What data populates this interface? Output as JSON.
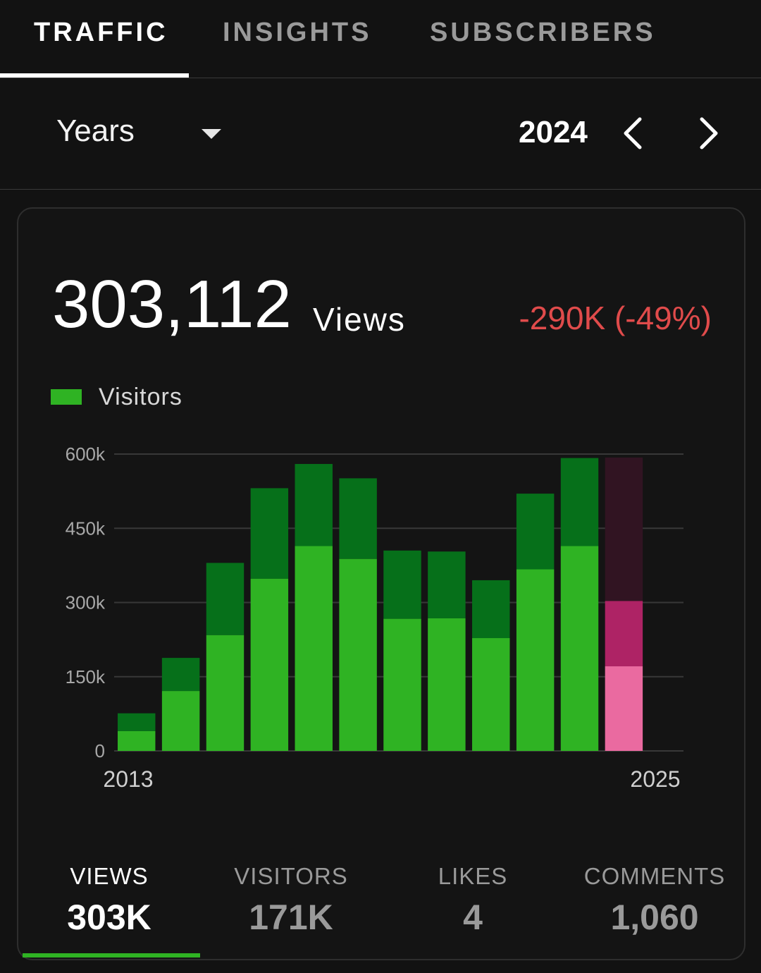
{
  "tabs": [
    {
      "label": "TRAFFIC",
      "active": true
    },
    {
      "label": "INSIGHTS",
      "active": false
    },
    {
      "label": "SUBSCRIBERS",
      "active": false
    }
  ],
  "toolbar": {
    "period": "Years",
    "dropdown_icon": "caret-down-icon",
    "year": "2024",
    "prev_icon": "chevron-left-icon",
    "next_icon": "chevron-right-icon"
  },
  "summary": {
    "total": "303,112",
    "unit": "Views",
    "delta": "-290K (-49%)",
    "delta_color": "#e04b4b"
  },
  "chart_data": {
    "type": "bar",
    "stacked": true,
    "legend": [
      {
        "name": "Visitors",
        "color": "#2fb323"
      }
    ],
    "x_tick_labels": [
      "2013",
      "2025"
    ],
    "y_ticks": [
      "600k",
      "450k",
      "300k",
      "150k",
      "0"
    ],
    "ylim": [
      0,
      600000
    ],
    "grid": true,
    "colors": {
      "visitors": "#2fb323",
      "views": "#06701a",
      "forecast_visitors": "#ea6aa0",
      "forecast_views": "#ae2365",
      "forecast_remaining": "#311422"
    },
    "bars": [
      {
        "visitors": 40000,
        "views": 76000
      },
      {
        "visitors": 121000,
        "views": 188000
      },
      {
        "visitors": 234000,
        "views": 380000
      },
      {
        "visitors": 348000,
        "views": 531000
      },
      {
        "visitors": 414000,
        "views": 580000
      },
      {
        "visitors": 388000,
        "views": 551000
      },
      {
        "visitors": 267000,
        "views": 405000
      },
      {
        "visitors": 268000,
        "views": 403000
      },
      {
        "visitors": 228000,
        "views": 345000
      },
      {
        "visitors": 367000,
        "views": 520000
      },
      {
        "visitors": 414000,
        "views": 592000
      },
      {
        "visitors": 171000,
        "views": 303000,
        "projected": 593000,
        "forecast": true
      },
      {
        "visitors": 0,
        "views": 0
      }
    ]
  },
  "stats": [
    {
      "label": "VIEWS",
      "value": "303K",
      "active": true
    },
    {
      "label": "VISITORS",
      "value": "171K",
      "active": false
    },
    {
      "label": "LIKES",
      "value": "4",
      "active": false
    },
    {
      "label": "COMMENTS",
      "value": "1,060",
      "active": false
    }
  ]
}
